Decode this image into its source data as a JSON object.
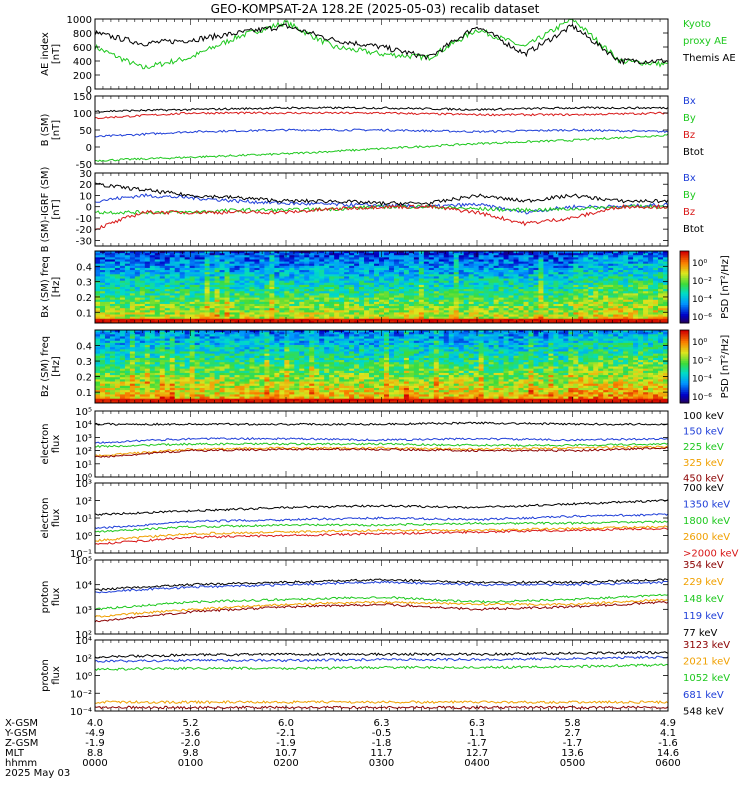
{
  "title": "GEO-KOMPSAT-2A 128.2E (2025-05-03) recalib dataset",
  "colors": {
    "black": "#000000",
    "blue": "#1f3fd8",
    "green": "#1ec81e",
    "red": "#d81818",
    "orange": "#f0a000",
    "darkred": "#8b0000",
    "sky": "#3f64ff",
    "lime": "#00d000"
  },
  "time_axis": {
    "rows": [
      {
        "label": "X-GSM",
        "values": [
          "4.0",
          "5.2",
          "6.0",
          "6.3",
          "6.3",
          "5.8",
          "4.9"
        ]
      },
      {
        "label": "Y-GSM",
        "values": [
          "-4.9",
          "-3.6",
          "-2.1",
          "-0.5",
          "1.1",
          "2.7",
          "4.1"
        ]
      },
      {
        "label": "Z-GSM",
        "values": [
          "-1.9",
          "-2.0",
          "-1.9",
          "-1.8",
          "-1.7",
          "-1.7",
          "-1.6"
        ]
      },
      {
        "label": "MLT",
        "values": [
          "8.8",
          "9.8",
          "10.7",
          "11.7",
          "12.7",
          "13.6",
          "14.6"
        ]
      },
      {
        "label": "hhmm",
        "values": [
          "0000",
          "0100",
          "0200",
          "0300",
          "0400",
          "0500",
          "0600"
        ]
      }
    ],
    "date": "2025 May 03"
  },
  "chart_data": [
    {
      "id": "ae",
      "type": "line",
      "ylabel": "AE index [nT]",
      "ylim": [
        0,
        1000
      ],
      "ticks": [
        "0",
        "200",
        "400",
        "600",
        "800",
        "1000"
      ],
      "x": [
        0,
        0.5,
        1,
        1.5,
        2,
        2.5,
        3,
        3.5,
        4,
        4.5,
        5,
        5.5,
        6
      ],
      "series": [
        {
          "name": "Kyoto proxy AE",
          "color": "green",
          "values": [
            600,
            300,
            450,
            750,
            950,
            600,
            500,
            450,
            850,
            600,
            1000,
            400,
            350
          ],
          "legend_lines": [
            "Kyoto",
            "proxy AE"
          ]
        },
        {
          "name": "Themis AE",
          "color": "black",
          "values": [
            800,
            650,
            700,
            800,
            900,
            700,
            600,
            450,
            900,
            500,
            900,
            400,
            400
          ],
          "legend_lines": [
            "Themis AE"
          ]
        }
      ]
    },
    {
      "id": "bsm",
      "type": "line",
      "ylabel": "B (SM) [nT]",
      "ylim": [
        -50,
        150
      ],
      "ticks": [
        "-50",
        "0",
        "50",
        "100",
        "150"
      ],
      "x": [
        0,
        1,
        2,
        3,
        4,
        5,
        6
      ],
      "series": [
        {
          "name": "Bx",
          "color": "blue",
          "values": [
            30,
            45,
            50,
            50,
            45,
            50,
            45
          ],
          "legend_lines": [
            "Bx"
          ]
        },
        {
          "name": "By",
          "color": "green",
          "values": [
            -40,
            -30,
            -20,
            -5,
            10,
            20,
            35
          ],
          "legend_lines": [
            "By"
          ]
        },
        {
          "name": "Bz",
          "color": "red",
          "values": [
            85,
            100,
            100,
            100,
            95,
            95,
            100
          ],
          "legend_lines": [
            "Bz"
          ]
        },
        {
          "name": "Btot",
          "color": "black",
          "values": [
            105,
            110,
            115,
            115,
            110,
            115,
            115
          ],
          "legend_lines": [
            "Btot"
          ]
        }
      ]
    },
    {
      "id": "bigrf",
      "type": "line",
      "ylabel": "B (SM)-IGRF (SM) [nT]",
      "ylim": [
        -35,
        30
      ],
      "ticks": [
        "-30",
        "-20",
        "-10",
        "0",
        "10",
        "20",
        "30"
      ],
      "x": [
        0,
        0.5,
        1,
        1.5,
        2,
        2.5,
        3,
        3.5,
        4,
        4.5,
        5,
        5.5,
        6
      ],
      "series": [
        {
          "name": "Bx",
          "color": "blue",
          "values": [
            5,
            10,
            8,
            5,
            3,
            2,
            1,
            0,
            2,
            -5,
            0,
            0,
            2
          ],
          "legend_lines": [
            "Bx"
          ]
        },
        {
          "name": "By",
          "color": "green",
          "values": [
            -5,
            -5,
            -5,
            -3,
            -3,
            -2,
            0,
            0,
            -2,
            -3,
            -2,
            0,
            0
          ],
          "legend_lines": [
            "By"
          ]
        },
        {
          "name": "Bz",
          "color": "red",
          "values": [
            -20,
            -5,
            -5,
            -5,
            -5,
            -2,
            0,
            0,
            -5,
            -15,
            -10,
            0,
            0
          ],
          "legend_lines": [
            "Bz"
          ]
        },
        {
          "name": "Btot",
          "color": "black",
          "values": [
            20,
            15,
            10,
            8,
            5,
            5,
            3,
            3,
            10,
            5,
            10,
            5,
            5
          ],
          "legend_lines": [
            "Btot"
          ]
        }
      ]
    },
    {
      "id": "bx_spec",
      "type": "heatmap",
      "ylabel": "Bx (SM) freq [Hz]",
      "ylim": [
        0.03,
        0.5
      ],
      "ticks": [
        "0.1",
        "0.2",
        "0.3",
        "0.4"
      ],
      "colorbar": {
        "label": "PSD [nT²/Hz]",
        "ticks": [
          "10⁰",
          "10⁻²",
          "10⁻⁴",
          "10⁻⁶"
        ]
      }
    },
    {
      "id": "bz_spec",
      "type": "heatmap",
      "ylabel": "Bz (SM) freq [Hz]",
      "ylim": [
        0.03,
        0.5
      ],
      "ticks": [
        "0.1",
        "0.2",
        "0.3",
        "0.4"
      ],
      "colorbar": {
        "label": "PSD [nT²/Hz]",
        "ticks": [
          "10⁰",
          "10⁻²",
          "10⁻⁴",
          "10⁻⁶"
        ]
      }
    },
    {
      "id": "e_low",
      "type": "line",
      "log": true,
      "ylabel": "electron flux",
      "ylim": [
        1,
        6
      ],
      "ticks": [
        "10⁰",
        "10¹",
        "10²",
        "10³",
        "10⁴",
        "10⁵"
      ],
      "x": [
        0,
        1,
        2,
        3,
        4,
        5,
        6
      ],
      "series": [
        {
          "name": "100 keV",
          "color": "black",
          "values": [
            5.0,
            5.0,
            5.0,
            5.0,
            5.1,
            5.0,
            5.0
          ],
          "legend_lines": [
            "100 keV"
          ]
        },
        {
          "name": "150 keV",
          "color": "blue",
          "values": [
            3.6,
            3.9,
            3.9,
            3.8,
            3.9,
            3.8,
            3.9
          ],
          "legend_lines": [
            "150 keV"
          ]
        },
        {
          "name": "225 keV",
          "color": "green",
          "values": [
            3.3,
            3.5,
            3.5,
            3.5,
            3.4,
            3.4,
            3.5
          ],
          "legend_lines": [
            "225 keV"
          ]
        },
        {
          "name": "325 keV",
          "color": "orange",
          "values": [
            2.6,
            3.1,
            3.2,
            3.2,
            3.1,
            3.2,
            3.3
          ],
          "legend_lines": [
            "325 keV"
          ]
        },
        {
          "name": "450 keV",
          "color": "darkred",
          "values": [
            2.5,
            3.0,
            3.1,
            3.1,
            3.0,
            3.0,
            3.2
          ],
          "legend_lines": [
            "450 keV"
          ]
        }
      ]
    },
    {
      "id": "e_high",
      "type": "line",
      "log": true,
      "ylabel": "electron flux",
      "ylim": [
        -1,
        3
      ],
      "ticks": [
        "10⁻¹",
        "10⁰",
        "10¹",
        "10²",
        "10³"
      ],
      "x": [
        0,
        1,
        2,
        3,
        4,
        5,
        6
      ],
      "series": [
        {
          "name": "700 keV",
          "color": "black",
          "values": [
            1.2,
            1.4,
            1.6,
            1.7,
            1.6,
            1.8,
            2.0
          ],
          "legend_lines": [
            "700 keV"
          ]
        },
        {
          "name": "1350 keV",
          "color": "blue",
          "values": [
            0.4,
            0.8,
            0.9,
            1.0,
            0.9,
            1.1,
            1.2
          ],
          "legend_lines": [
            "1350 keV"
          ]
        },
        {
          "name": "1800 keV",
          "color": "green",
          "values": [
            0.2,
            0.5,
            0.6,
            0.6,
            0.7,
            0.7,
            0.8
          ],
          "legend_lines": [
            "1800 keV"
          ]
        },
        {
          "name": "2600 keV",
          "color": "orange",
          "values": [
            -0.3,
            0.1,
            0.2,
            0.3,
            0.3,
            0.4,
            0.5
          ],
          "legend_lines": [
            "2600 keV"
          ]
        },
        {
          "name": ">2000 keV",
          "color": "red",
          "values": [
            -0.5,
            -0.1,
            0.0,
            0.1,
            0.2,
            0.3,
            0.4
          ],
          "legend_lines": [
            ">2000 keV"
          ]
        }
      ]
    },
    {
      "id": "p_low",
      "type": "line",
      "log": true,
      "ylabel": "proton flux",
      "ylim": [
        2,
        5
      ],
      "ticks": [
        "10²",
        "10³",
        "10⁴",
        "10⁵"
      ],
      "x": [
        0,
        1,
        2,
        3,
        4,
        5,
        6
      ],
      "series": [
        {
          "name": "354 keV",
          "color": "darkred",
          "values": [
            2.5,
            2.9,
            3.1,
            3.2,
            3.0,
            3.1,
            3.3
          ],
          "legend_lines": [
            "354 keV"
          ]
        },
        {
          "name": "229 keV",
          "color": "orange",
          "values": [
            2.7,
            3.0,
            3.2,
            3.3,
            3.2,
            3.2,
            3.4
          ],
          "legend_lines": [
            "229 keV"
          ]
        },
        {
          "name": "148 keV",
          "color": "green",
          "values": [
            3.0,
            3.3,
            3.4,
            3.5,
            3.3,
            3.4,
            3.6
          ],
          "legend_lines": [
            "148 keV"
          ]
        },
        {
          "name": "119 keV",
          "color": "blue",
          "values": [
            3.7,
            3.9,
            4.0,
            4.1,
            4.0,
            4.0,
            4.1
          ],
          "legend_lines": [
            "119 keV"
          ]
        },
        {
          "name": "77 keV",
          "color": "black",
          "values": [
            3.8,
            4.0,
            4.1,
            4.2,
            4.1,
            4.1,
            4.2
          ],
          "legend_lines": [
            "77 keV"
          ]
        }
      ]
    },
    {
      "id": "p_high",
      "type": "line",
      "log": true,
      "ylabel": "proton flux",
      "ylim": [
        -4,
        4
      ],
      "ticks": [
        "10⁻⁴",
        "10⁻²",
        "10⁰",
        "10²",
        "10⁴"
      ],
      "x": [
        0,
        1,
        2,
        3,
        4,
        5,
        6
      ],
      "series": [
        {
          "name": "3123 keV",
          "color": "darkred",
          "values": [
            -3.6,
            -3.6,
            -3.6,
            -3.6,
            -3.6,
            -3.6,
            -3.6
          ],
          "legend_lines": [
            "3123 keV"
          ]
        },
        {
          "name": "2021 keV",
          "color": "orange",
          "values": [
            -3.0,
            -3.0,
            -3.0,
            -3.0,
            -3.0,
            -3.0,
            -3.0
          ],
          "legend_lines": [
            "2021 keV"
          ]
        },
        {
          "name": "1052 keV",
          "color": "green",
          "values": [
            0.7,
            0.8,
            0.8,
            0.9,
            0.9,
            1.0,
            1.2
          ],
          "legend_lines": [
            "1052 keV"
          ]
        },
        {
          "name": "681 keV",
          "color": "blue",
          "values": [
            1.6,
            1.7,
            1.7,
            1.8,
            1.8,
            1.9,
            2.1
          ],
          "legend_lines": [
            "681 keV"
          ]
        },
        {
          "name": "548 keV",
          "color": "black",
          "values": [
            2.1,
            2.3,
            2.4,
            2.4,
            2.4,
            2.5,
            2.6
          ],
          "legend_lines": [
            "548 keV"
          ]
        }
      ]
    }
  ]
}
